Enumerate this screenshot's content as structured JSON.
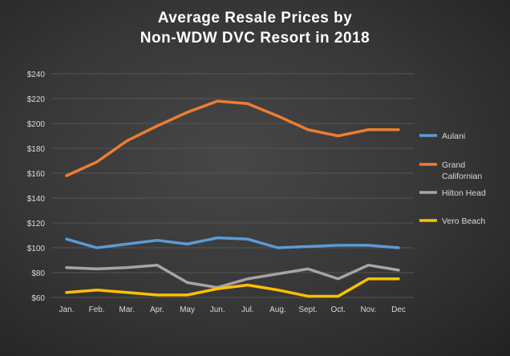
{
  "chart_data": {
    "type": "line",
    "title": [
      "Average Resale Prices by",
      "Non-WDW  DVC Resort in 2018"
    ],
    "xlabel": "",
    "ylabel": "",
    "categories": [
      "Jan.",
      "Feb.",
      "Mar.",
      "Apr.",
      "May",
      "Jun.",
      "Jul.",
      "Aug.",
      "Sept.",
      "Oct.",
      "Nov.",
      "Dec"
    ],
    "ylim": [
      60,
      240
    ],
    "yticks": [
      60,
      80,
      100,
      120,
      140,
      160,
      180,
      200,
      220,
      240
    ],
    "ytick_labels": [
      "$60",
      "$80",
      "$100",
      "$120",
      "$140",
      "$160",
      "$180",
      "$200",
      "$220",
      "$240"
    ],
    "grid": true,
    "legend_position": "right",
    "series": [
      {
        "name": "Aulani",
        "color": "#5b9bd5",
        "values": [
          107,
          100,
          103,
          106,
          103,
          108,
          107,
          100,
          101,
          102,
          102,
          100
        ]
      },
      {
        "name": "Grand Californian",
        "legend_lines": [
          "Grand",
          "Californian"
        ],
        "color": "#ed7d31",
        "values": [
          158,
          169,
          186,
          198,
          209,
          218,
          216,
          206,
          195,
          190,
          195,
          195
        ]
      },
      {
        "name": "Hilton Head",
        "color": "#a5a5a5",
        "values": [
          84,
          83,
          84,
          86,
          72,
          68,
          75,
          79,
          83,
          75,
          86,
          82
        ]
      },
      {
        "name": "Vero Beach",
        "color": "#ffc000",
        "values": [
          64,
          66,
          64,
          62,
          62,
          67,
          70,
          66,
          61,
          61,
          75,
          75
        ]
      }
    ]
  }
}
